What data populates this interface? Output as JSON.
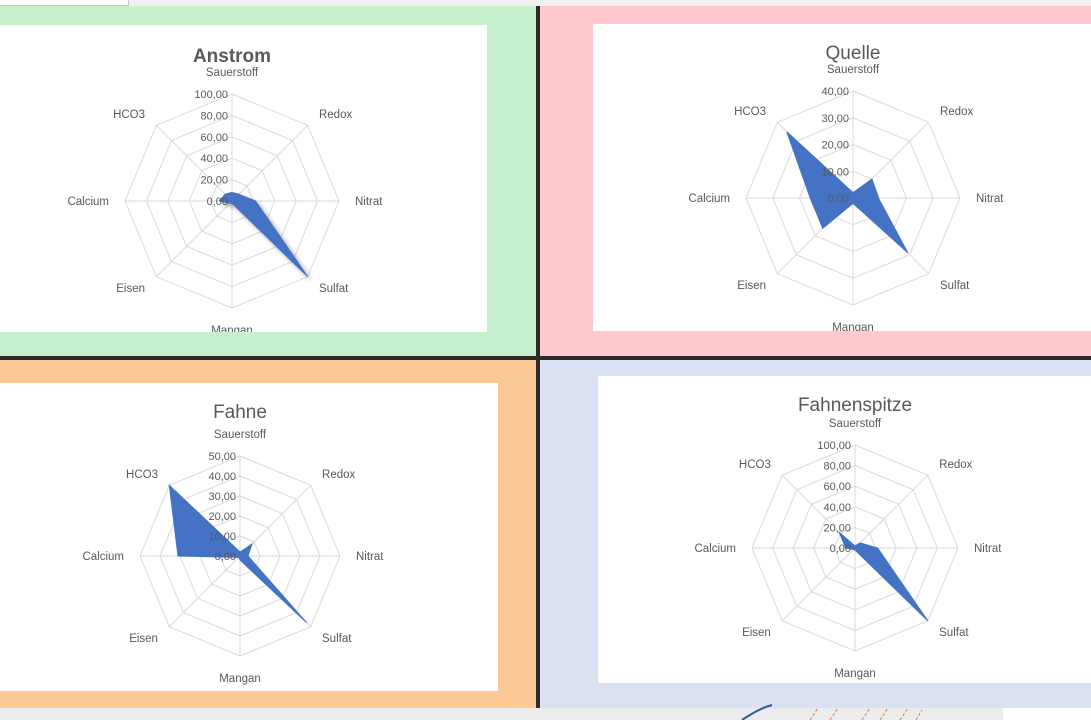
{
  "colors": {
    "series": "#4472c4",
    "quad_backgrounds": [
      "#c6efce",
      "#ffc7ce",
      "#fcc996",
      "#d9e1f2"
    ]
  },
  "chart_data": [
    {
      "type": "radar",
      "title": "Anstrom",
      "title_bold": true,
      "axes": [
        "Sauerstoff",
        "Redox",
        "Nitrat",
        "Sulfat",
        "Mangan",
        "Eisen",
        "Calcium",
        "HCO3"
      ],
      "tick_labels": [
        "0,00",
        "20,00",
        "40,00",
        "60,00",
        "80,00",
        "100,00"
      ],
      "ylim": [
        0,
        100
      ],
      "series": [
        {
          "values": [
            8,
            9,
            22,
            100,
            2,
            3,
            12,
            9
          ]
        }
      ],
      "shadow": true
    },
    {
      "type": "radar",
      "title": "Quelle",
      "title_bold": false,
      "axes": [
        "Sauerstoff",
        "Redox",
        "Nitrat",
        "Sulfat",
        "Mangan",
        "Eisen",
        "Calcium",
        "HCO3"
      ],
      "tick_labels": [
        "0,00",
        "10,00",
        "20,00",
        "30,00",
        "40,00"
      ],
      "ylim": [
        0,
        40
      ],
      "series": [
        {
          "values": [
            2,
            10,
            9.5,
            29,
            2,
            16,
            16,
            35
          ]
        }
      ],
      "shadow": false
    },
    {
      "type": "radar",
      "title": "Fahne",
      "title_bold": false,
      "axes": [
        "Sauerstoff",
        "Redox",
        "Nitrat",
        "Sulfat",
        "Mangan",
        "Eisen",
        "Calcium",
        "HCO3"
      ],
      "tick_labels": [
        "0,00",
        "10,00",
        "20,00",
        "30,00",
        "40,00",
        "50,00"
      ],
      "ylim": [
        0,
        50
      ],
      "series": [
        {
          "values": [
            2,
            8.5,
            4,
            47,
            2,
            1,
            31,
            50
          ]
        }
      ],
      "shadow": false
    },
    {
      "type": "radar",
      "title": "Fahnenspitze",
      "title_bold": false,
      "axes": [
        "Sauerstoff",
        "Redox",
        "Nitrat",
        "Sulfat",
        "Mangan",
        "Eisen",
        "Calcium",
        "HCO3"
      ],
      "tick_labels": [
        "0,00",
        "20,00",
        "40,00",
        "60,00",
        "80,00",
        "100,00"
      ],
      "ylim": [
        0,
        100
      ],
      "series": [
        {
          "values": [
            2,
            7,
            22,
            100,
            2,
            2,
            9,
            22
          ]
        }
      ],
      "shadow": false
    }
  ]
}
